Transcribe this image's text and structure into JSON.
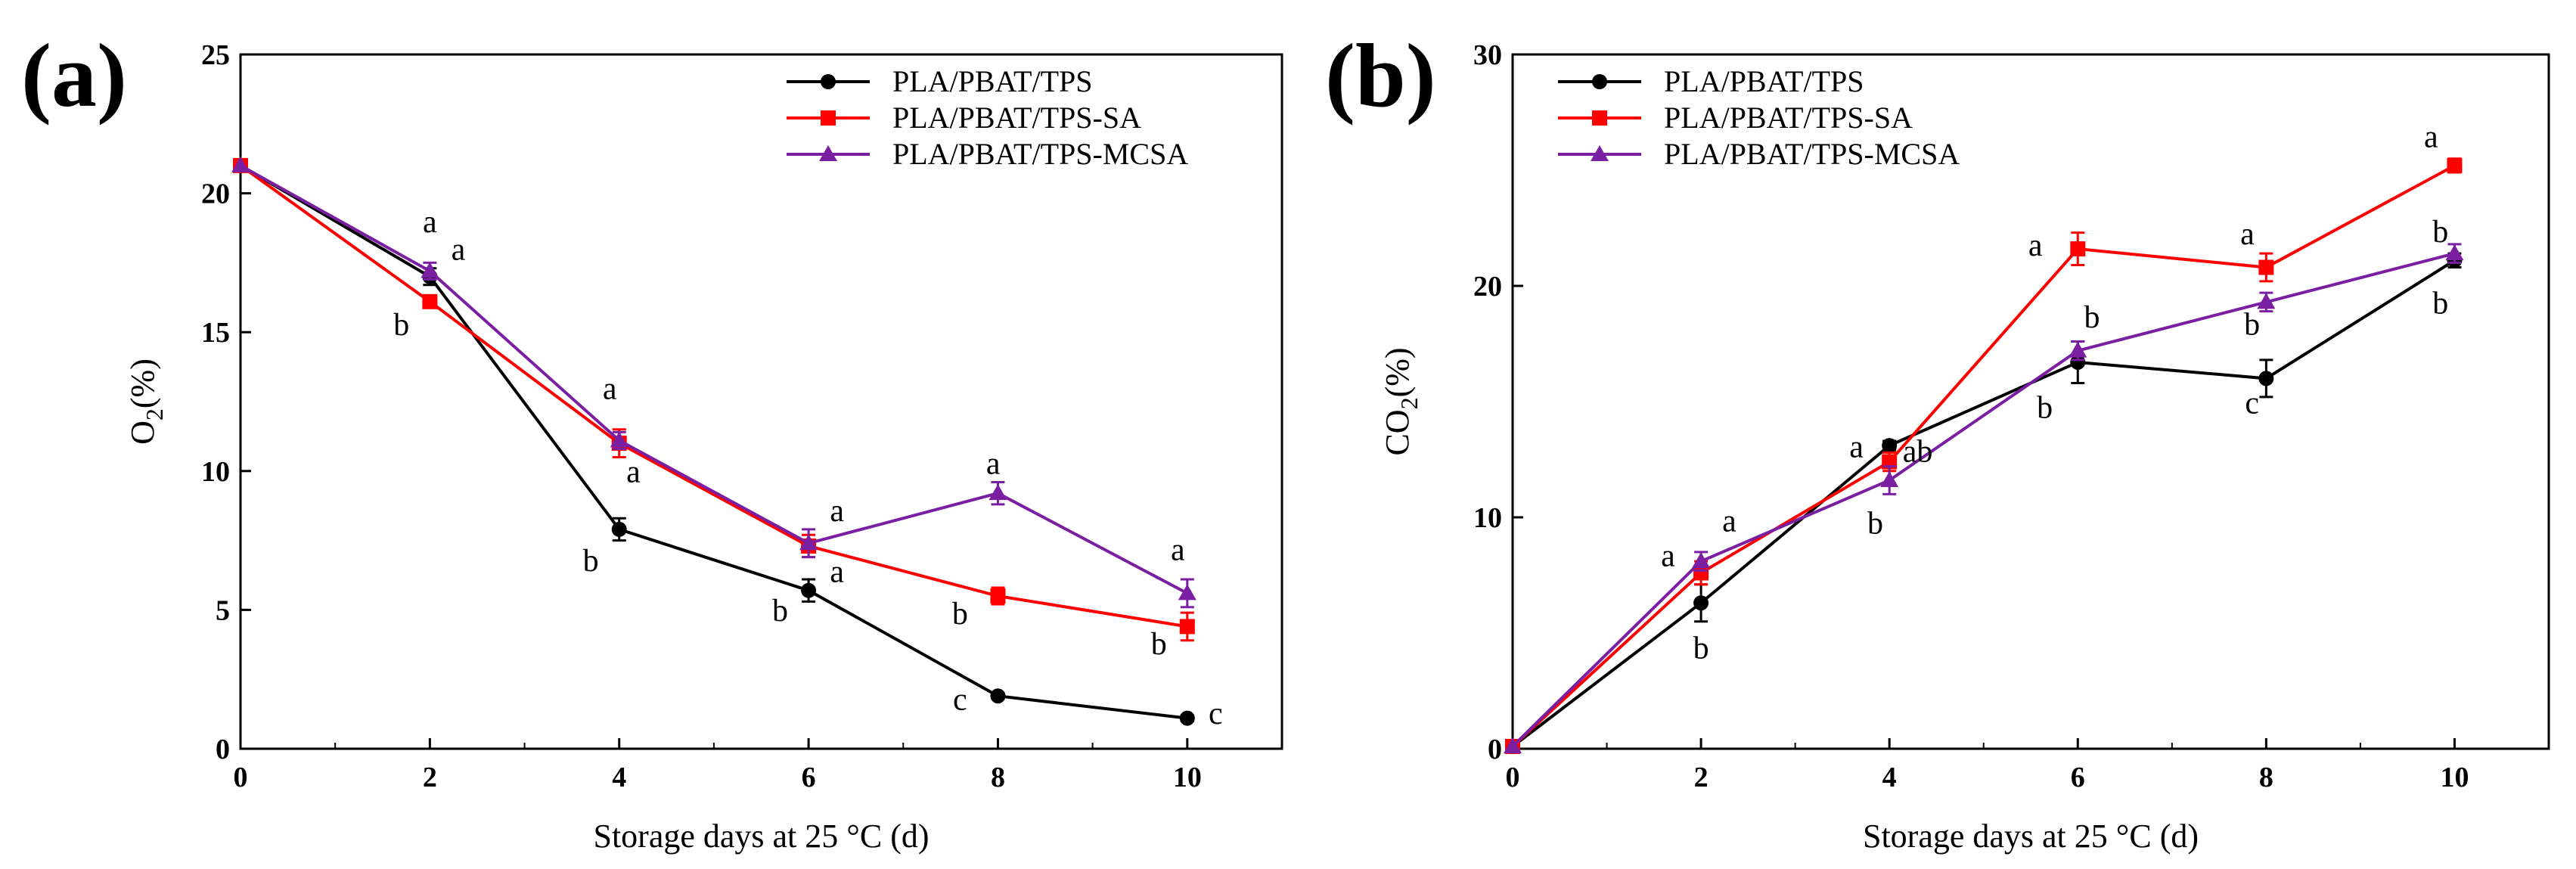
{
  "chart_data": [
    {
      "type": "line",
      "panel": "(a)",
      "title": "",
      "xlabel": "Storage days at 25 °C (d)",
      "ylabel_main": "O",
      "ylabel_sub": "2",
      "ylabel_tail": "(%)",
      "xlim": [
        0,
        11
      ],
      "ylim": [
        0,
        25
      ],
      "xticks": [
        0,
        2,
        4,
        6,
        8,
        10
      ],
      "yticks": [
        0,
        5,
        10,
        15,
        20,
        25
      ],
      "legend_position": "top-right",
      "series": [
        {
          "name": "PLA/PBAT/TPS",
          "color": "#000000",
          "marker": "circle",
          "x": [
            0,
            2,
            4,
            6,
            8,
            10
          ],
          "values": [
            21.0,
            17.0,
            7.9,
            5.7,
            1.9,
            1.1
          ],
          "errors": [
            0,
            0.3,
            0.4,
            0.4,
            0.1,
            0.1
          ]
        },
        {
          "name": "PLA/PBAT/TPS-SA",
          "color": "#ff0000",
          "marker": "square",
          "x": [
            0,
            2,
            4,
            6,
            8,
            10
          ],
          "values": [
            21.0,
            16.1,
            11.0,
            7.3,
            5.5,
            4.4
          ],
          "errors": [
            0,
            0.2,
            0.5,
            0.4,
            0.3,
            0.5
          ]
        },
        {
          "name": "PLA/PBAT/TPS-MCSA",
          "color": "#7b1fa2",
          "marker": "triangle",
          "x": [
            0,
            2,
            4,
            6,
            8,
            10
          ],
          "values": [
            21.0,
            17.2,
            11.1,
            7.4,
            9.2,
            5.6
          ],
          "errors": [
            0,
            0.3,
            0.3,
            0.5,
            0.4,
            0.5
          ]
        }
      ],
      "annotations": [
        {
          "text": "a",
          "x": 2,
          "y": 18.6
        },
        {
          "text": "a",
          "x": 2.3,
          "y": 17.6
        },
        {
          "text": "b",
          "x": 1.7,
          "y": 14.9
        },
        {
          "text": "a",
          "x": 3.9,
          "y": 12.6
        },
        {
          "text": "a",
          "x": 4.15,
          "y": 9.6
        },
        {
          "text": "b",
          "x": 3.7,
          "y": 6.4
        },
        {
          "text": "a",
          "x": 6.3,
          "y": 8.2
        },
        {
          "text": "a",
          "x": 6.3,
          "y": 6.0
        },
        {
          "text": "b",
          "x": 5.7,
          "y": 4.6
        },
        {
          "text": "a",
          "x": 7.95,
          "y": 9.9
        },
        {
          "text": "b",
          "x": 7.6,
          "y": 4.5
        },
        {
          "text": "c",
          "x": 7.6,
          "y": 1.4
        },
        {
          "text": "a",
          "x": 9.9,
          "y": 6.8
        },
        {
          "text": "b",
          "x": 9.7,
          "y": 3.4
        },
        {
          "text": "c",
          "x": 10.3,
          "y": 0.9
        }
      ]
    },
    {
      "type": "line",
      "panel": "(b)",
      "title": "",
      "xlabel": "Storage days at 25 °C (d)",
      "ylabel_main": "CO",
      "ylabel_sub": "2",
      "ylabel_tail": "(%)",
      "xlim": [
        0,
        11
      ],
      "ylim": [
        0,
        30
      ],
      "xticks": [
        0,
        2,
        4,
        6,
        8,
        10
      ],
      "yticks": [
        0,
        10,
        20,
        30
      ],
      "legend_position": "top-left",
      "series": [
        {
          "name": "PLA/PBAT/TPS",
          "color": "#000000",
          "marker": "circle",
          "x": [
            0,
            2,
            4,
            6,
            8,
            10
          ],
          "values": [
            0.1,
            6.3,
            13.1,
            16.7,
            16.0,
            21.1
          ],
          "errors": [
            0,
            0.8,
            0.2,
            0.9,
            0.8,
            0.3
          ]
        },
        {
          "name": "PLA/PBAT/TPS-SA",
          "color": "#ff0000",
          "marker": "square",
          "x": [
            0,
            2,
            4,
            6,
            8,
            10
          ],
          "values": [
            0.1,
            7.6,
            12.4,
            21.6,
            20.8,
            25.2
          ],
          "errors": [
            0,
            0.5,
            0.4,
            0.7,
            0.6,
            0.3
          ]
        },
        {
          "name": "PLA/PBAT/TPS-MCSA",
          "color": "#7b1fa2",
          "marker": "triangle",
          "x": [
            0,
            2,
            4,
            6,
            8,
            10
          ],
          "values": [
            0.1,
            8.1,
            11.6,
            17.2,
            19.3,
            21.4
          ],
          "errors": [
            0,
            0.4,
            0.6,
            0.4,
            0.4,
            0.4
          ]
        }
      ],
      "annotations": [
        {
          "text": "a",
          "x": 1.65,
          "y": 7.9
        },
        {
          "text": "a",
          "x": 2.3,
          "y": 9.4
        },
        {
          "text": "b",
          "x": 2.0,
          "y": 3.9
        },
        {
          "text": "a",
          "x": 3.65,
          "y": 12.6
        },
        {
          "text": "ab",
          "x": 4.3,
          "y": 12.4
        },
        {
          "text": "b",
          "x": 3.85,
          "y": 9.3
        },
        {
          "text": "a",
          "x": 5.55,
          "y": 21.3
        },
        {
          "text": "b",
          "x": 6.15,
          "y": 18.2
        },
        {
          "text": "b",
          "x": 5.65,
          "y": 14.3
        },
        {
          "text": "a",
          "x": 7.8,
          "y": 21.8
        },
        {
          "text": "b",
          "x": 7.85,
          "y": 17.9
        },
        {
          "text": "c",
          "x": 7.85,
          "y": 14.5
        },
        {
          "text": "a",
          "x": 9.75,
          "y": 26.0
        },
        {
          "text": "b",
          "x": 9.85,
          "y": 21.9
        },
        {
          "text": "b",
          "x": 9.85,
          "y": 18.8
        }
      ]
    }
  ]
}
